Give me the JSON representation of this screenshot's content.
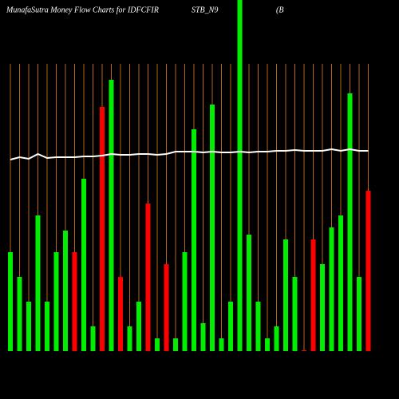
{
  "chart_data": {
    "type": "bar",
    "title": [
      "MunafaSutra  Money Flow  Charts for IDFCFIR",
      "STB_N9",
      "(B"
    ],
    "categories": [
      null,
      null,
      null,
      null,
      null,
      null,
      null,
      null,
      null,
      null,
      null,
      null,
      null,
      null,
      null,
      null,
      null,
      null,
      null,
      null,
      null,
      null,
      null,
      null,
      null,
      null,
      null,
      null,
      null,
      null,
      null,
      null,
      null,
      null,
      null,
      null,
      null,
      null,
      null,
      null
    ],
    "values": [
      124,
      93,
      62,
      170,
      62,
      124,
      151,
      124,
      216,
      31,
      306,
      340,
      93,
      31,
      62,
      185,
      16,
      109,
      16,
      124,
      278,
      35,
      309,
      16,
      62,
      440,
      146,
      62,
      16,
      31,
      140,
      93,
      1,
      140,
      109,
      155,
      170,
      323,
      93,
      201
    ],
    "colors": [
      "#00ee00",
      "#00ee00",
      "#00ee00",
      "#00ee00",
      "#00ee00",
      "#00ee00",
      "#00ee00",
      "#ff0000",
      "#00ee00",
      "#00ee00",
      "#ff0000",
      "#00ee00",
      "#ff0000",
      "#00ee00",
      "#00ee00",
      "#ff0000",
      "#00ee00",
      "#ff0000",
      "#00ee00",
      "#00ee00",
      "#00ee00",
      "#00ee00",
      "#00ee00",
      "#00ee00",
      "#00ee00",
      "#00ee00",
      "#00ee00",
      "#00ee00",
      "#00ee00",
      "#00ee00",
      "#00ee00",
      "#00ee00",
      "#ff0000",
      "#ff0000",
      "#00ee00",
      "#00ee00",
      "#00ee00",
      "#00ee00",
      "#00ee00",
      "#ff0000"
    ],
    "line": {
      "color": "#ffffff",
      "values": [
        240,
        243,
        241,
        247,
        242,
        243,
        243,
        243,
        244,
        244,
        245,
        247,
        246,
        246,
        247,
        247,
        246,
        247,
        250,
        250,
        250,
        249,
        250,
        249,
        249,
        250,
        249,
        250,
        250,
        251,
        251,
        252,
        251,
        251,
        251,
        253,
        251,
        253,
        251,
        251
      ]
    },
    "ylim": [
      0,
      440
    ],
    "grid_color": "#b8651b"
  }
}
